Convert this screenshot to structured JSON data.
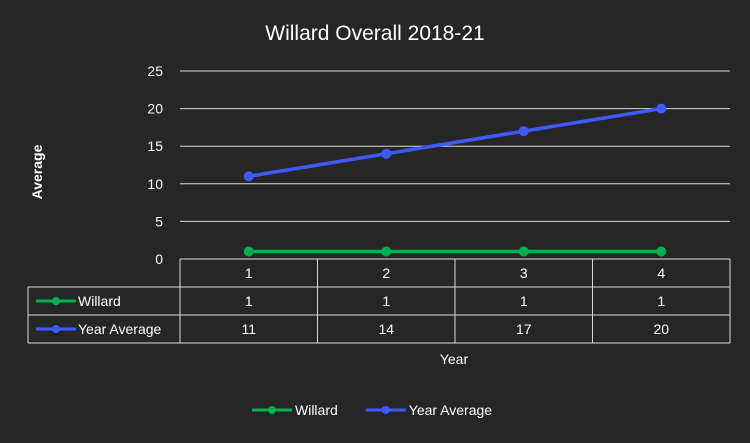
{
  "chart_data": {
    "type": "line",
    "title": "Willard Overall 2018-21",
    "xlabel": "Year",
    "ylabel": "Average",
    "categories": [
      "1",
      "2",
      "3",
      "4"
    ],
    "ylim": [
      0,
      25
    ],
    "yticks": [
      0,
      5,
      10,
      15,
      20,
      25
    ],
    "grid": true,
    "legend": "bottom",
    "data_table": true,
    "series": [
      {
        "name": "Willard",
        "values": [
          1,
          1,
          1,
          1
        ],
        "color": "#00b050"
      },
      {
        "name": "Year Average",
        "values": [
          11,
          14,
          17,
          20
        ],
        "color": "#3d5afe"
      }
    ]
  },
  "colors": {
    "background": "#262626",
    "text": "#ffffff",
    "grid": "#d9d9d9"
  }
}
